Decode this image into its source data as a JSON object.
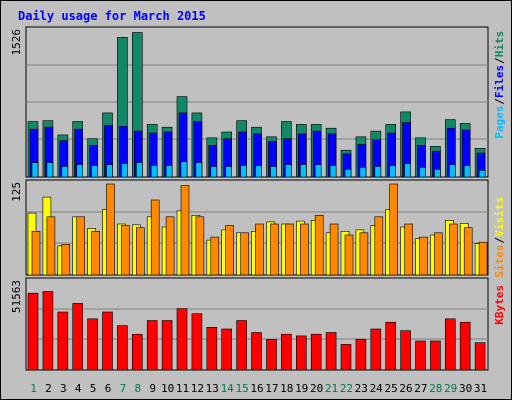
{
  "title": "Daily usage for March 2015",
  "colors": {
    "hits": "#118866",
    "files": "#0000ff",
    "pages": "#00c0ff",
    "visits": "#ffff00",
    "sites": "#ff8800",
    "kbytes": "#ff0000",
    "weekday": "#000000",
    "weekend": "#007755"
  },
  "chart_data": {
    "type": "bar",
    "days": [
      "1",
      "2",
      "3",
      "4",
      "5",
      "6",
      "7",
      "8",
      "9",
      "10",
      "11",
      "12",
      "13",
      "14",
      "15",
      "16",
      "17",
      "18",
      "19",
      "20",
      "21",
      "22",
      "23",
      "24",
      "25",
      "26",
      "27",
      "28",
      "29",
      "30",
      "31"
    ],
    "weekend_days": [
      "1",
      "7",
      "8",
      "14",
      "15",
      "21",
      "22",
      "28",
      "29"
    ],
    "panels": [
      {
        "id": "top",
        "y_max_label": "1526",
        "ylim": [
          0,
          1526
        ],
        "series": [
          {
            "name": "Hits",
            "color_key": "hits",
            "values": [
              580,
              590,
              440,
              580,
              400,
              670,
              1460,
              1510,
              550,
              520,
              840,
              670,
              410,
              470,
              590,
              520,
              420,
              580,
              550,
              550,
              510,
              280,
              420,
              480,
              550,
              680,
              410,
              320,
              600,
              560,
              300
            ]
          },
          {
            "name": "Files",
            "color_key": "files",
            "values": [
              500,
              520,
              380,
              500,
              330,
              540,
              530,
              480,
              460,
              470,
              670,
              580,
              330,
              400,
              470,
              450,
              370,
              400,
              450,
              480,
              450,
              240,
              340,
              390,
              460,
              570,
              330,
              270,
              510,
              490,
              250
            ]
          },
          {
            "name": "Pages",
            "color_key": "pages",
            "values": [
              150,
              150,
              110,
              130,
              120,
              130,
              140,
              150,
              120,
              120,
              160,
              150,
              110,
              110,
              120,
              120,
              110,
              130,
              130,
              130,
              120,
              80,
              100,
              110,
              120,
              140,
              100,
              80,
              130,
              120,
              70
            ]
          }
        ]
      },
      {
        "id": "middle",
        "y_max_label": "125",
        "ylim": [
          0,
          125
        ],
        "series": [
          {
            "name": "Visits",
            "color_key": "visits",
            "values": [
              85,
              107,
              40,
              80,
              64,
              90,
              70,
              69,
              80,
              66,
              88,
              82,
              48,
              62,
              58,
              60,
              73,
              70,
              74,
              75,
              58,
              60,
              62,
              68,
              90,
              66,
              50,
              55,
              75,
              71,
              43
            ]
          },
          {
            "name": "Sites",
            "color_key": "sites",
            "values": [
              60,
              80,
              42,
              80,
              60,
              125,
              68,
              65,
              103,
              80,
              123,
              80,
              52,
              68,
              58,
              70,
              70,
              70,
              70,
              82,
              70,
              55,
              58,
              80,
              125,
              70,
              52,
              58,
              70,
              65,
              45
            ]
          }
        ]
      },
      {
        "id": "bottom",
        "y_max_label": "51563",
        "ylim": [
          0,
          51563
        ],
        "series": [
          {
            "name": "KBytes",
            "color_key": "kbytes",
            "values": [
              45000,
              46000,
              34000,
              39000,
              30000,
              34000,
              26000,
              21000,
              29000,
              29000,
              36000,
              33000,
              25000,
              24000,
              29000,
              22000,
              18000,
              21000,
              20000,
              21000,
              22000,
              15000,
              18000,
              24000,
              28000,
              23000,
              17000,
              17000,
              30000,
              28000,
              16000
            ]
          }
        ]
      }
    ],
    "legend": {
      "top": [
        "Pages",
        "Files",
        "Hits"
      ],
      "middle": [
        "Sites",
        "Visits"
      ],
      "bottom": [
        "KBytes"
      ]
    }
  }
}
